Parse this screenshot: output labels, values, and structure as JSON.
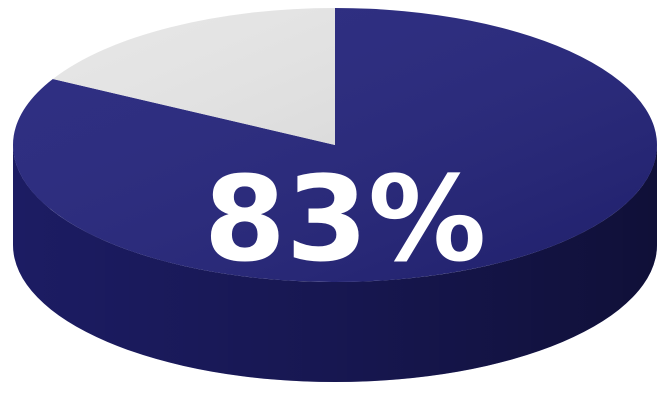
{
  "chart_data": {
    "type": "pie",
    "values": [
      83,
      17
    ],
    "value_labels": [
      "83%",
      null
    ],
    "colors": [
      "#23237c",
      "#e6e6e6"
    ]
  }
}
